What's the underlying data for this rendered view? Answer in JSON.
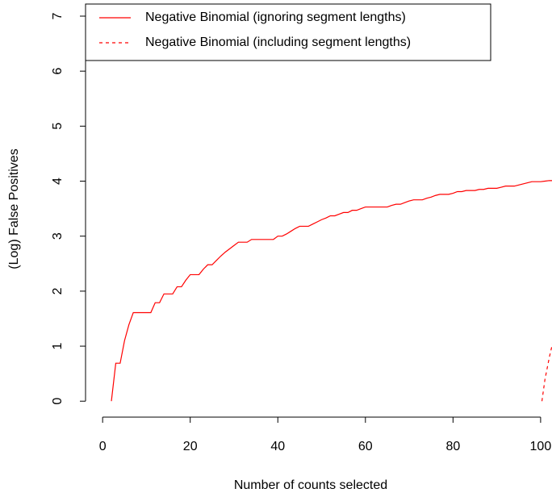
{
  "chart_data": {
    "type": "line",
    "xlabel": "Number of counts selected",
    "ylabel": "(Log) False Positives",
    "xlim": [
      -3.9,
      102.6
    ],
    "ylim": [
      -0.29,
      7.22
    ],
    "xticks": [
      0,
      20,
      40,
      60,
      80,
      100
    ],
    "yticks": [
      0,
      1,
      2,
      3,
      4,
      5,
      6,
      7
    ],
    "legend": "top-left",
    "series": [
      {
        "name": "Negative Binomial (ignoring segment lengths)",
        "color": "#ff0000",
        "dash": "solid",
        "x": [
          2,
          3,
          4,
          5,
          6,
          7,
          8,
          9,
          10,
          11,
          12,
          13,
          14,
          15,
          16,
          17,
          18,
          19,
          20,
          21,
          22,
          23,
          24,
          25,
          26,
          27,
          28,
          29,
          30,
          31,
          32,
          33,
          34,
          35,
          36,
          37,
          38,
          39,
          40,
          41,
          42,
          43,
          44,
          45,
          46,
          47,
          48,
          49,
          50,
          51,
          52,
          53,
          54,
          55,
          56,
          57,
          58,
          59,
          60,
          61,
          62,
          63,
          64,
          65,
          66,
          67,
          68,
          69,
          70,
          71,
          72,
          73,
          74,
          75,
          76,
          77,
          78,
          79,
          80,
          81,
          82,
          83,
          84,
          85,
          86,
          87,
          88,
          89,
          90,
          91,
          92,
          93,
          94,
          95,
          96,
          97,
          98,
          99,
          100,
          101,
          102,
          103
        ],
        "values": [
          0,
          0.69,
          0.69,
          1.1,
          1.39,
          1.61,
          1.61,
          1.61,
          1.61,
          1.61,
          1.79,
          1.79,
          1.95,
          1.95,
          1.95,
          2.08,
          2.08,
          2.2,
          2.3,
          2.3,
          2.3,
          2.4,
          2.48,
          2.48,
          2.56,
          2.64,
          2.71,
          2.77,
          2.83,
          2.89,
          2.89,
          2.89,
          2.94,
          2.94,
          2.94,
          2.94,
          2.94,
          2.94,
          3.0,
          3.0,
          3.04,
          3.09,
          3.14,
          3.18,
          3.18,
          3.18,
          3.22,
          3.26,
          3.3,
          3.33,
          3.37,
          3.37,
          3.4,
          3.43,
          3.43,
          3.47,
          3.47,
          3.5,
          3.53,
          3.53,
          3.53,
          3.53,
          3.53,
          3.53,
          3.56,
          3.58,
          3.58,
          3.61,
          3.64,
          3.66,
          3.66,
          3.66,
          3.69,
          3.71,
          3.74,
          3.76,
          3.76,
          3.76,
          3.78,
          3.81,
          3.81,
          3.83,
          3.83,
          3.83,
          3.85,
          3.85,
          3.87,
          3.87,
          3.87,
          3.89,
          3.91,
          3.91,
          3.91,
          3.93,
          3.95,
          3.97,
          3.99,
          3.99,
          3.99,
          4.0,
          4.01,
          4.01
        ]
      },
      {
        "name": "Negative Binomial (including segment lengths)",
        "color": "#ff0000",
        "dash": "dashed",
        "x": [
          100.3,
          101,
          102,
          103
        ],
        "values": [
          0,
          0.4,
          0.8,
          1.15
        ]
      }
    ]
  }
}
